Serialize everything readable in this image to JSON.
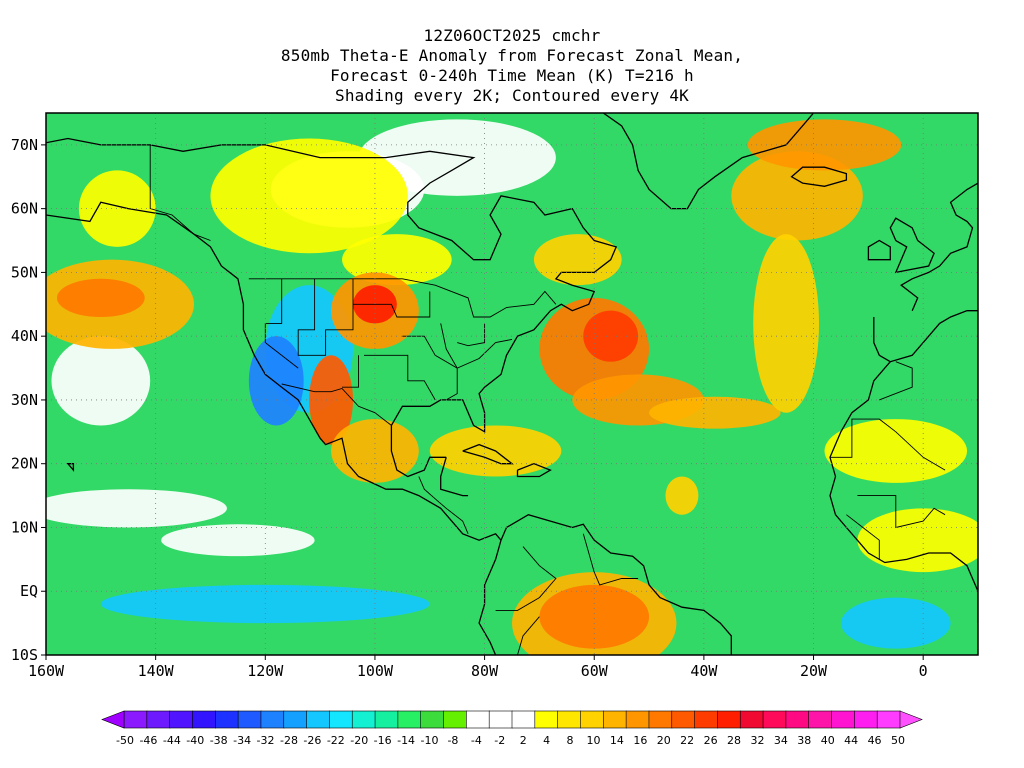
{
  "title": {
    "line1": "12Z06OCT2025 cmchr",
    "line2": "850mb Theta-E Anomaly from Forecast Zonal Mean,",
    "line3": "Forecast 0-240h Time Mean (K) T=216 h",
    "line4": "Shading every 2K; Contoured every 4K"
  },
  "map": {
    "lon_range": [
      -160,
      10
    ],
    "lat_range": [
      -10,
      75
    ],
    "x_ticks": [
      {
        "lon": -160,
        "label": "160W"
      },
      {
        "lon": -140,
        "label": "140W"
      },
      {
        "lon": -120,
        "label": "120W"
      },
      {
        "lon": -100,
        "label": "100W"
      },
      {
        "lon": -80,
        "label": "80W"
      },
      {
        "lon": -60,
        "label": "60W"
      },
      {
        "lon": -40,
        "label": "40W"
      },
      {
        "lon": -20,
        "label": "20W"
      },
      {
        "lon": 0,
        "label": "0"
      }
    ],
    "y_ticks": [
      {
        "lat": -10,
        "label": "10S"
      },
      {
        "lat": 0,
        "label": "EQ"
      },
      {
        "lat": 10,
        "label": "10N"
      },
      {
        "lat": 20,
        "label": "20N"
      },
      {
        "lat": 30,
        "label": "30N"
      },
      {
        "lat": 40,
        "label": "40N"
      },
      {
        "lat": 50,
        "label": "50N"
      },
      {
        "lat": 60,
        "label": "60N"
      },
      {
        "lat": 70,
        "label": "70N"
      }
    ],
    "base_color": "#33d966"
  },
  "colorbar": {
    "colors": [
      "#8c1aff",
      "#6e1aff",
      "#5014ff",
      "#3214ff",
      "#1e32ff",
      "#1e5aff",
      "#1e82ff",
      "#14a0ff",
      "#14c8ff",
      "#14e6ff",
      "#14f0d2",
      "#14f0a0",
      "#28f064",
      "#3cdc3c",
      "#64f000",
      "#ffffff",
      "#ffffff",
      "#ffffff",
      "#ffff00",
      "#ffe600",
      "#ffd200",
      "#ffb400",
      "#ff9600",
      "#ff7800",
      "#ff5a00",
      "#ff3c00",
      "#ff1e00",
      "#f00a32",
      "#ff0a5a",
      "#ff0a82",
      "#ff14aa",
      "#ff14d2",
      "#ff1ef0",
      "#ff3cff"
    ],
    "labels": [
      "-50",
      "-46",
      "-44",
      "-40",
      "-38",
      "-34",
      "-32",
      "-28",
      "-26",
      "-22",
      "-20",
      "-16",
      "-14",
      "-10",
      "-8",
      "-4",
      "-2",
      "2",
      "4",
      "8",
      "10",
      "14",
      "16",
      "20",
      "22",
      "26",
      "28",
      "32",
      "34",
      "38",
      "40",
      "44",
      "46",
      "50"
    ]
  },
  "features": [
    {
      "lon": -85,
      "lat": 68,
      "rx": 18,
      "ry": 6,
      "color": "#ffffff"
    },
    {
      "lon": -105,
      "lat": 63,
      "rx": 14,
      "ry": 6,
      "color": "#ffffff"
    },
    {
      "lon": -150,
      "lat": 33,
      "rx": 9,
      "ry": 7,
      "color": "#ffffff"
    },
    {
      "lon": -145,
      "lat": 13,
      "rx": 18,
      "ry": 3,
      "color": "#ffffff"
    },
    {
      "lon": -125,
      "lat": 8,
      "rx": 14,
      "ry": 2.5,
      "color": "#ffffff"
    },
    {
      "lon": -147,
      "lat": 60,
      "rx": 7,
      "ry": 6,
      "color": "#ffff00"
    },
    {
      "lon": -112,
      "lat": 62,
      "rx": 18,
      "ry": 9,
      "color": "#ffff00"
    },
    {
      "lon": -148,
      "lat": 45,
      "rx": 15,
      "ry": 7,
      "color": "#ffb400"
    },
    {
      "lon": -150,
      "lat": 46,
      "rx": 8,
      "ry": 3,
      "color": "#ff7800"
    },
    {
      "lon": -96,
      "lat": 52,
      "rx": 10,
      "ry": 4,
      "color": "#ffff00"
    },
    {
      "lon": -112,
      "lat": 38,
      "rx": 8,
      "ry": 10,
      "color": "#14c8ff"
    },
    {
      "lon": -118,
      "lat": 33,
      "rx": 5,
      "ry": 7,
      "color": "#1e82ff"
    },
    {
      "lon": -100,
      "lat": 44,
      "rx": 8,
      "ry": 6,
      "color": "#ff9600"
    },
    {
      "lon": -100,
      "lat": 45,
      "rx": 4,
      "ry": 3,
      "color": "#ff1e00"
    },
    {
      "lon": -108,
      "lat": 30,
      "rx": 4,
      "ry": 7,
      "color": "#ff5a00"
    },
    {
      "lon": -100,
      "lat": 22,
      "rx": 8,
      "ry": 5,
      "color": "#ffb400"
    },
    {
      "lon": -78,
      "lat": 22,
      "rx": 12,
      "ry": 4,
      "color": "#ffd200"
    },
    {
      "lon": -60,
      "lat": 38,
      "rx": 10,
      "ry": 8,
      "color": "#ff7800"
    },
    {
      "lon": -57,
      "lat": 40,
      "rx": 5,
      "ry": 4,
      "color": "#ff3c00"
    },
    {
      "lon": -52,
      "lat": 30,
      "rx": 12,
      "ry": 4,
      "color": "#ff9600"
    },
    {
      "lon": -38,
      "lat": 28,
      "rx": 12,
      "ry": 2.5,
      "color": "#ffb400"
    },
    {
      "lon": -44,
      "lat": 15,
      "rx": 3,
      "ry": 3,
      "color": "#ffd200"
    },
    {
      "lon": -63,
      "lat": 52,
      "rx": 8,
      "ry": 4,
      "color": "#ffd200"
    },
    {
      "lon": -23,
      "lat": 62,
      "rx": 12,
      "ry": 7,
      "color": "#ffb400"
    },
    {
      "lon": -18,
      "lat": 70,
      "rx": 14,
      "ry": 4,
      "color": "#ff9600"
    },
    {
      "lon": -25,
      "lat": 42,
      "rx": 6,
      "ry": 14,
      "color": "#ffd200"
    },
    {
      "lon": -5,
      "lat": 22,
      "rx": 13,
      "ry": 5,
      "color": "#ffff00"
    },
    {
      "lon": 0,
      "lat": 8,
      "rx": 12,
      "ry": 5,
      "color": "#ffff00"
    },
    {
      "lon": -60,
      "lat": -5,
      "rx": 15,
      "ry": 8,
      "color": "#ffb400"
    },
    {
      "lon": -60,
      "lat": -4,
      "rx": 10,
      "ry": 5,
      "color": "#ff7800"
    },
    {
      "lon": -120,
      "lat": -2,
      "rx": 30,
      "ry": 3,
      "color": "#14c8ff"
    },
    {
      "lon": -5,
      "lat": -5,
      "rx": 10,
      "ry": 4,
      "color": "#14c8ff"
    }
  ]
}
